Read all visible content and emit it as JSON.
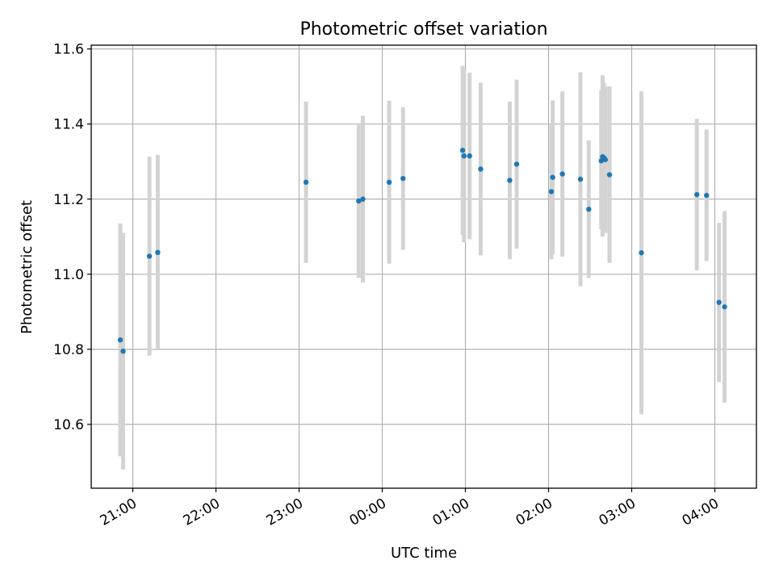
{
  "chart_data": {
    "type": "scatter",
    "title": "Photometric offset variation",
    "xlabel": "UTC time",
    "ylabel": "Photometric offset",
    "x_unit": "UTC time of day (continuing past midnight)",
    "x_ticks": [
      "21:00",
      "22:00",
      "23:00",
      "00:00",
      "01:00",
      "02:00",
      "03:00",
      "04:00"
    ],
    "y_ticks": [
      "10.6",
      "10.8",
      "11.0",
      "11.2",
      "11.4",
      "11.6"
    ],
    "xlim": [
      "20:30",
      "04:30"
    ],
    "ylim": [
      10.43,
      11.61
    ],
    "grid": true,
    "colors": {
      "point": "#1f77b4",
      "error_bar": "#d3d3d3"
    },
    "series": [
      {
        "points": [
          {
            "x": "20:51",
            "y": 10.825,
            "err_low": 10.515,
            "err_high": 11.135
          },
          {
            "x": "20:53",
            "y": 10.795,
            "err_low": 10.48,
            "err_high": 11.11
          },
          {
            "x": "21:12",
            "y": 11.048,
            "err_low": 10.783,
            "err_high": 11.313
          },
          {
            "x": "21:18",
            "y": 11.058,
            "err_low": 10.8,
            "err_high": 11.318
          },
          {
            "x": "23:05",
            "y": 11.245,
            "err_low": 11.03,
            "err_high": 11.46
          },
          {
            "x": "23:43",
            "y": 11.195,
            "err_low": 10.99,
            "err_high": 11.4
          },
          {
            "x": "23:46",
            "y": 11.2,
            "err_low": 10.978,
            "err_high": 11.422
          },
          {
            "x": "00:05",
            "y": 11.245,
            "err_low": 11.028,
            "err_high": 11.462
          },
          {
            "x": "00:15",
            "y": 11.255,
            "err_low": 11.065,
            "err_high": 11.445
          },
          {
            "x": "00:58",
            "y": 11.33,
            "err_low": 11.105,
            "err_high": 11.555
          },
          {
            "x": "00:59",
            "y": 11.315,
            "err_low": 11.085,
            "err_high": 11.545
          },
          {
            "x": "01:03",
            "y": 11.315,
            "err_low": 11.093,
            "err_high": 11.537
          },
          {
            "x": "01:11",
            "y": 11.28,
            "err_low": 11.05,
            "err_high": 11.51
          },
          {
            "x": "01:32",
            "y": 11.25,
            "err_low": 11.04,
            "err_high": 11.46
          },
          {
            "x": "01:37",
            "y": 11.293,
            "err_low": 11.068,
            "err_high": 11.518
          },
          {
            "x": "02:02",
            "y": 11.22,
            "err_low": 11.04,
            "err_high": 11.4
          },
          {
            "x": "02:03",
            "y": 11.258,
            "err_low": 11.053,
            "err_high": 11.463
          },
          {
            "x": "02:10",
            "y": 11.267,
            "err_low": 11.047,
            "err_high": 11.487
          },
          {
            "x": "02:23",
            "y": 11.253,
            "err_low": 10.968,
            "err_high": 11.538
          },
          {
            "x": "02:29",
            "y": 11.173,
            "err_low": 10.99,
            "err_high": 11.356
          },
          {
            "x": "02:38",
            "y": 11.302,
            "err_low": 11.12,
            "err_high": 11.49
          },
          {
            "x": "02:39",
            "y": 11.313,
            "err_low": 11.1,
            "err_high": 11.53
          },
          {
            "x": "02:40",
            "y": 11.31,
            "err_low": 11.11,
            "err_high": 11.51
          },
          {
            "x": "02:41",
            "y": 11.305,
            "err_low": 11.11,
            "err_high": 11.5
          },
          {
            "x": "02:44",
            "y": 11.265,
            "err_low": 11.03,
            "err_high": 11.5
          },
          {
            "x": "03:07",
            "y": 11.057,
            "err_low": 10.627,
            "err_high": 11.487
          },
          {
            "x": "03:47",
            "y": 11.212,
            "err_low": 11.01,
            "err_high": 11.414
          },
          {
            "x": "03:54",
            "y": 11.21,
            "err_low": 11.035,
            "err_high": 11.385
          },
          {
            "x": "04:03",
            "y": 10.925,
            "err_low": 10.713,
            "err_high": 11.137
          },
          {
            "x": "04:07",
            "y": 10.913,
            "err_low": 10.658,
            "err_high": 11.168
          }
        ]
      }
    ]
  }
}
